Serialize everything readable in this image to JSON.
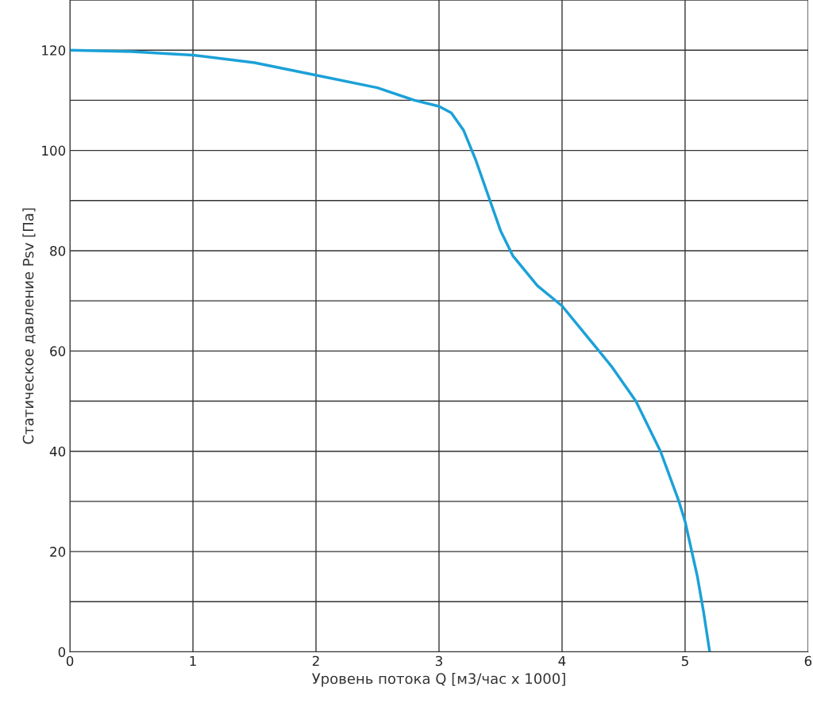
{
  "chart_data": {
    "type": "line",
    "xlabel": "Уровень потока Q [м3/час x 1000]",
    "ylabel": "Статическое давление Psv [Па]",
    "x": [
      0,
      0.5,
      1,
      1.5,
      2,
      2.5,
      2.8,
      3.0,
      3.1,
      3.2,
      3.3,
      3.4,
      3.5,
      3.6,
      3.8,
      4.0,
      4.2,
      4.4,
      4.6,
      4.8,
      4.95,
      5.0,
      5.1,
      5.15,
      5.2
    ],
    "series": [
      {
        "color": "#1ba1d8",
        "values": [
          120,
          119.7,
          119,
          117.5,
          115,
          112.5,
          110,
          108.8,
          107.5,
          104,
          98,
          91,
          84,
          79,
          73,
          69,
          63,
          57,
          50,
          40,
          30,
          26,
          15,
          8,
          0
        ]
      }
    ],
    "xlim": [
      0,
      6
    ],
    "xticks": [
      0,
      1,
      2,
      3,
      4,
      5,
      6
    ],
    "ylim": [
      0,
      130
    ],
    "yticks": [
      0,
      {
        "value": 10,
        "label": null
      },
      20,
      {
        "value": 30,
        "label": null
      },
      40,
      {
        "value": 50,
        "label": null
      },
      60,
      {
        "value": 70,
        "label": null
      },
      80,
      {
        "value": 90,
        "label": null
      },
      100,
      {
        "value": 110,
        "label": null
      },
      120,
      {
        "value": 130,
        "label": null
      }
    ],
    "grid": true,
    "marker": "none",
    "line_style": "solid"
  }
}
